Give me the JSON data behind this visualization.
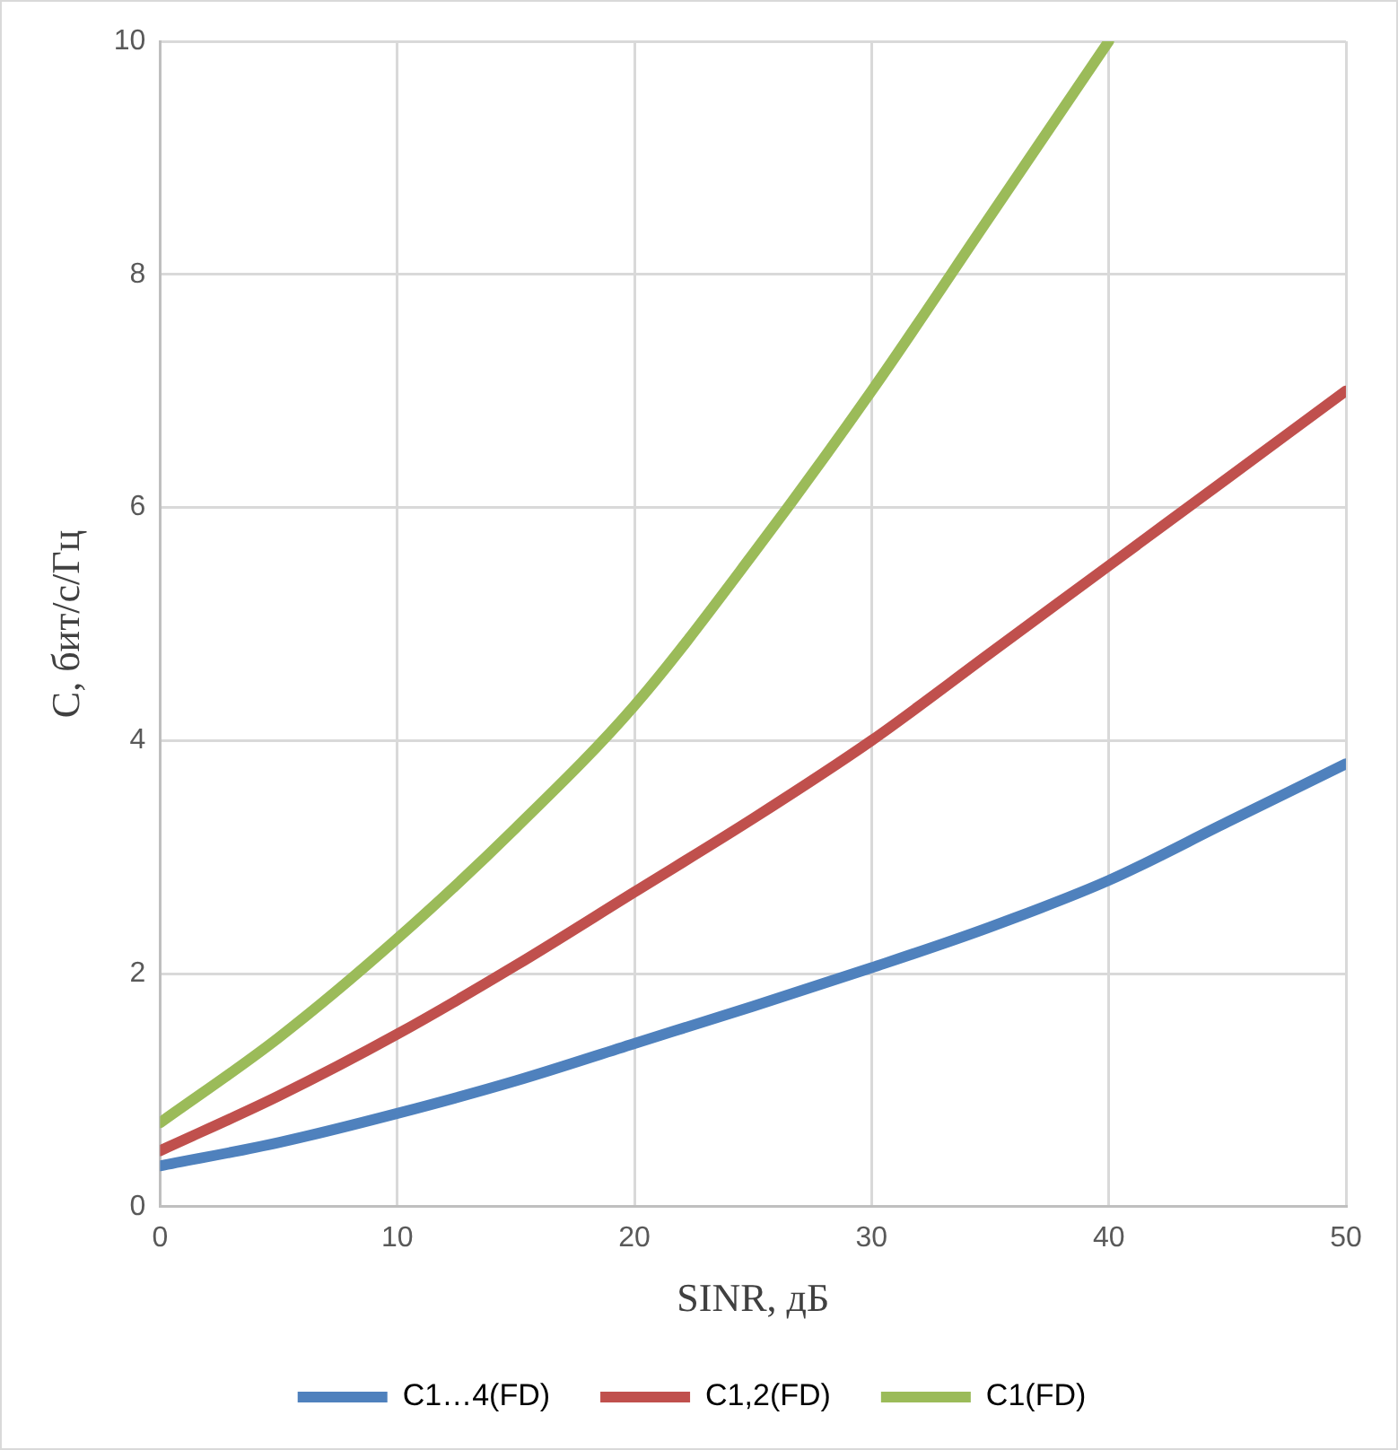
{
  "chart_data": {
    "type": "line",
    "xlabel": "SINR, дБ",
    "ylabel": "C, бит/с/Гц",
    "x": [
      0,
      5,
      10,
      15,
      20,
      25,
      30,
      35,
      40,
      45,
      50
    ],
    "series": [
      {
        "name": "C1…4(FD)",
        "color": "#4f81bd",
        "values": [
          0.35,
          0.55,
          0.8,
          1.08,
          1.4,
          1.72,
          2.05,
          2.4,
          2.8,
          3.3,
          3.8
        ]
      },
      {
        "name": "C1,2(FD)",
        "color": "#c0504d",
        "values": [
          0.48,
          0.95,
          1.48,
          2.07,
          2.7,
          3.33,
          4.0,
          4.75,
          5.5,
          6.25,
          7.0
        ]
      },
      {
        "name": "C1(FD)",
        "color": "#9bbb59",
        "values": [
          0.72,
          1.45,
          2.3,
          3.25,
          4.3,
          5.6,
          7.0,
          8.5,
          10.0,
          null,
          null
        ]
      }
    ],
    "xlim": [
      0,
      50
    ],
    "xticks": [
      0,
      10,
      20,
      30,
      40,
      50
    ],
    "ylim": [
      0,
      10
    ],
    "yticks": [
      0,
      2,
      4,
      6,
      8,
      10
    ],
    "grid": true,
    "legend": "bottom",
    "marker": "none",
    "line_style": "solid"
  }
}
